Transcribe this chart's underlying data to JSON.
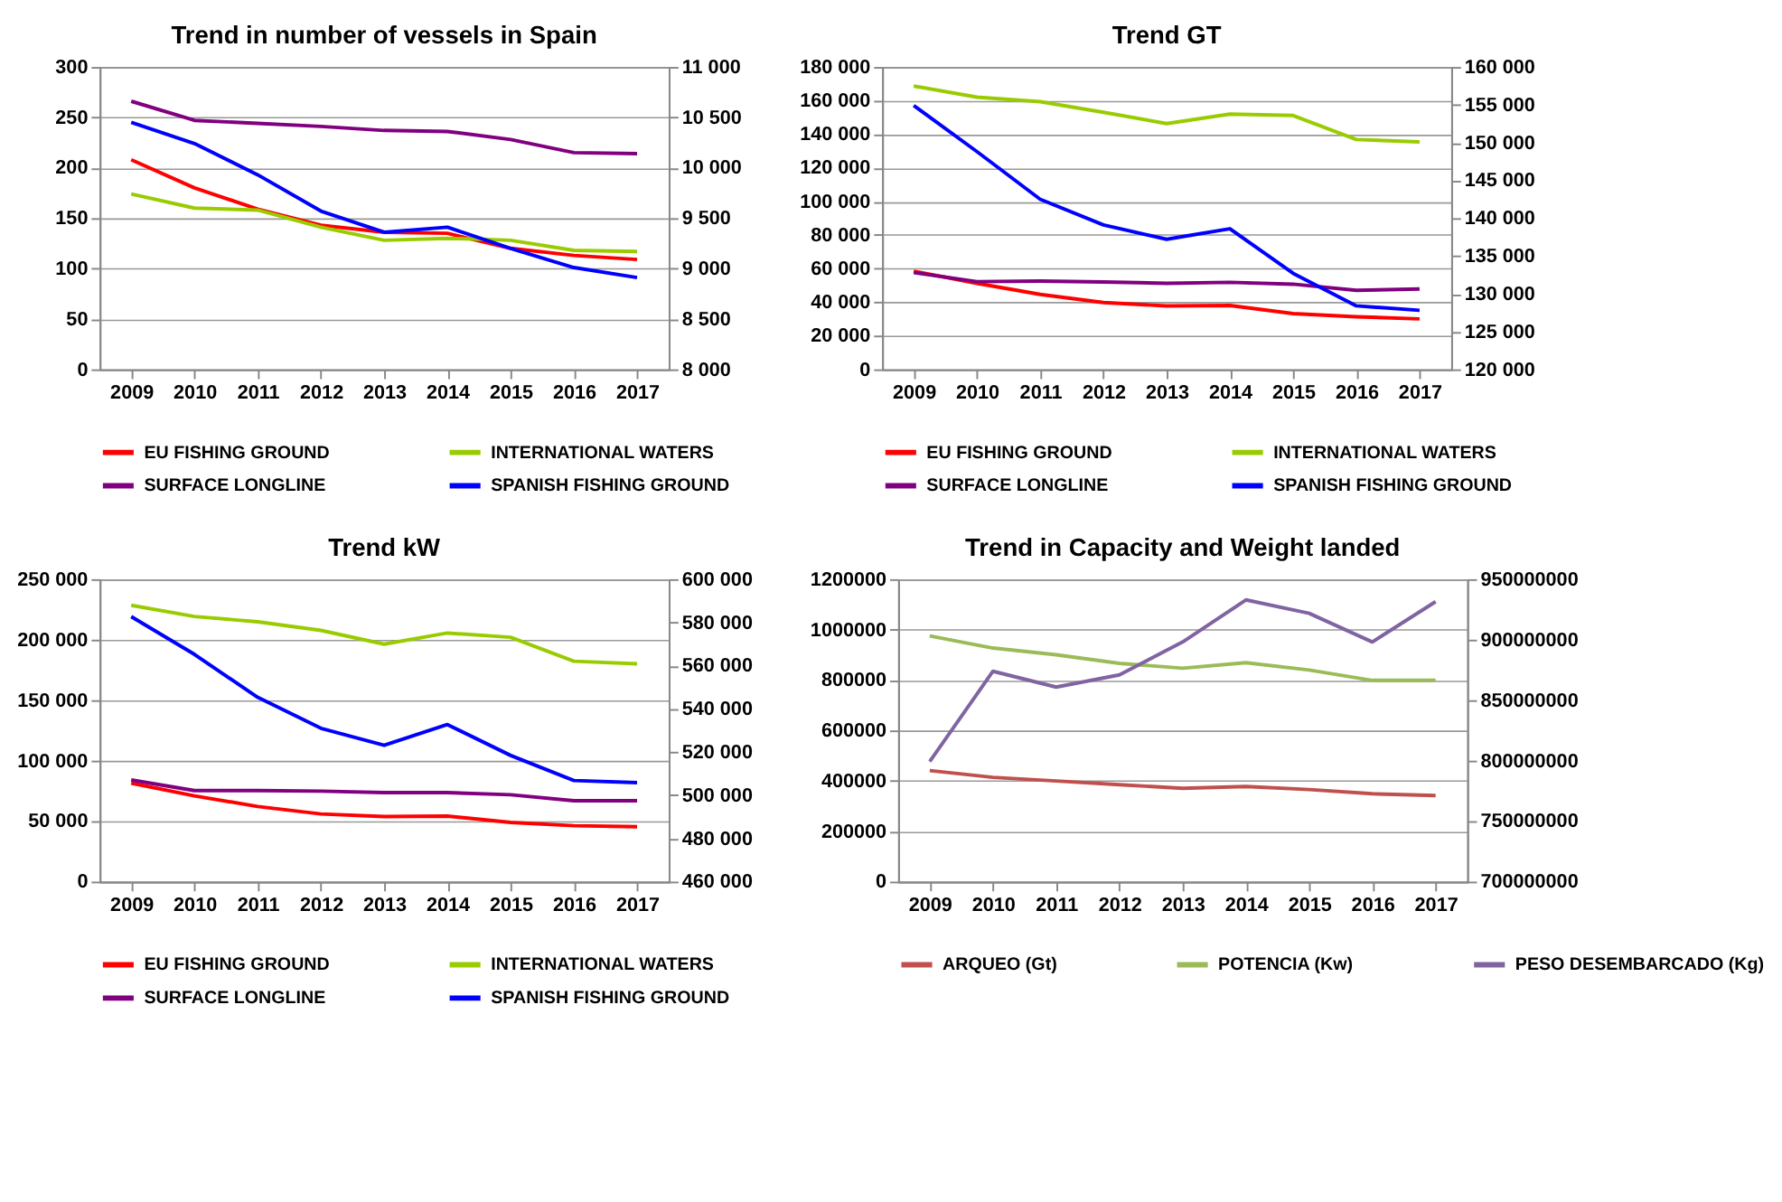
{
  "chart_data": [
    {
      "type": "line",
      "title": "Trend in number of vessels in Spain",
      "categories": [
        "2009",
        "2010",
        "2011",
        "2012",
        "2013",
        "2014",
        "2015",
        "2016",
        "2017"
      ],
      "ylim": [
        0,
        300
      ],
      "yticks": [
        0,
        50,
        100,
        150,
        200,
        250,
        300
      ],
      "y2lim": [
        8000,
        11000
      ],
      "y2ticks": [
        {
          "value": 8000,
          "label": "8 000"
        },
        {
          "value": 8500,
          "label": "8 500"
        },
        {
          "value": 9000,
          "label": "9 000"
        },
        {
          "value": 9500,
          "label": "9 500"
        },
        {
          "value": 10000,
          "label": "10 000"
        },
        {
          "value": 10500,
          "label": "10 500"
        },
        {
          "value": 11000,
          "label": "11 000"
        }
      ],
      "grid": "y",
      "legend": "bottom",
      "line_style": "solid",
      "marker": "none",
      "series": [
        {
          "name": "EU FISHING GROUND",
          "color": "#ff0000",
          "values": [
            208,
            180,
            159,
            143,
            136,
            135,
            120,
            113,
            109
          ]
        },
        {
          "name": "INTERNATIONAL WATERS",
          "color": "#99cc00",
          "values": [
            174,
            160,
            158,
            141,
            128,
            130,
            128,
            118,
            117
          ]
        },
        {
          "name": "SURFACE LONGLINE",
          "color": "#800080",
          "values": [
            266,
            247,
            244,
            241,
            237,
            236,
            228,
            215,
            214
          ]
        },
        {
          "name": "SPANISH FISHING GROUND",
          "color": "#0000ff",
          "axis": "y2",
          "values": [
            10450,
            10240,
            9930,
            9570,
            9360,
            9410,
            9200,
            9010,
            8910
          ]
        }
      ]
    },
    {
      "type": "line",
      "title": "Trend GT",
      "categories": [
        "2009",
        "2010",
        "2011",
        "2012",
        "2013",
        "2014",
        "2015",
        "2016",
        "2017"
      ],
      "ylim": [
        0,
        180000
      ],
      "yticks": [
        0,
        {
          "value": 20000,
          "label": "20 000"
        },
        {
          "value": 40000,
          "label": "40 000"
        },
        {
          "value": 60000,
          "label": "60 000"
        },
        {
          "value": 80000,
          "label": "80 000"
        },
        {
          "value": 100000,
          "label": "100 000"
        },
        {
          "value": 120000,
          "label": "120 000"
        },
        {
          "value": 140000,
          "label": "140 000"
        },
        {
          "value": 160000,
          "label": "160 000"
        },
        {
          "value": 180000,
          "label": "180 000"
        }
      ],
      "y2lim": [
        120000,
        160000
      ],
      "y2ticks": [
        {
          "value": 120000,
          "label": "120 000"
        },
        {
          "value": 125000,
          "label": "125 000"
        },
        {
          "value": 130000,
          "label": "130 000"
        },
        {
          "value": 135000,
          "label": "135 000"
        },
        {
          "value": 140000,
          "label": "140 000"
        },
        {
          "value": 145000,
          "label": "145 000"
        },
        {
          "value": 150000,
          "label": "150 000"
        },
        {
          "value": 155000,
          "label": "155 000"
        },
        {
          "value": 160000,
          "label": "160 000"
        }
      ],
      "grid": "y",
      "legend": "bottom",
      "line_style": "solid",
      "marker": "none",
      "series": [
        {
          "name": "EU FISHING GROUND",
          "color": "#ff0000",
          "values": [
            58400,
            51200,
            44600,
            39800,
            37700,
            38000,
            33200,
            31300,
            30000
          ]
        },
        {
          "name": "INTERNATIONAL WATERS",
          "color": "#99cc00",
          "values": [
            168600,
            162000,
            159300,
            153000,
            146300,
            151900,
            151100,
            136800,
            135400
          ]
        },
        {
          "name": "SURFACE LONGLINE",
          "color": "#800080",
          "values": [
            57600,
            52200,
            52500,
            52000,
            51200,
            51800,
            50700,
            47000,
            47800
          ]
        },
        {
          "name": "SPANISH FISHING GROUND",
          "color": "#0000ff",
          "axis": "y2",
          "values": [
            154900,
            148800,
            142500,
            139100,
            137200,
            138600,
            132700,
            128400,
            127800
          ]
        }
      ]
    },
    {
      "type": "line",
      "title": "Trend kW",
      "categories": [
        "2009",
        "2010",
        "2011",
        "2012",
        "2013",
        "2014",
        "2015",
        "2016",
        "2017"
      ],
      "ylim": [
        0,
        250000
      ],
      "yticks": [
        0,
        {
          "value": 50000,
          "label": "50 000"
        },
        {
          "value": 100000,
          "label": "100 000"
        },
        {
          "value": 150000,
          "label": "150 000"
        },
        {
          "value": 200000,
          "label": "200 000"
        },
        {
          "value": 250000,
          "label": "250 000"
        }
      ],
      "y2lim": [
        460000,
        600000
      ],
      "y2ticks": [
        {
          "value": 460000,
          "label": "460 000"
        },
        {
          "value": 480000,
          "label": "480 000"
        },
        {
          "value": 500000,
          "label": "500 000"
        },
        {
          "value": 520000,
          "label": "520 000"
        },
        {
          "value": 540000,
          "label": "540 000"
        },
        {
          "value": 560000,
          "label": "560 000"
        },
        {
          "value": 580000,
          "label": "580 000"
        },
        {
          "value": 600000,
          "label": "600 000"
        }
      ],
      "grid": "y",
      "legend": "bottom",
      "line_style": "solid",
      "marker": "none",
      "series": [
        {
          "name": "EU FISHING GROUND",
          "color": "#ff0000",
          "values": [
            81400,
            70900,
            62100,
            55900,
            53700,
            54100,
            48900,
            46200,
            45300
          ]
        },
        {
          "name": "INTERNATIONAL WATERS",
          "color": "#99cc00",
          "values": [
            228400,
            219200,
            214800,
            207700,
            196300,
            205500,
            202000,
            182200,
            180000
          ]
        },
        {
          "name": "SURFACE LONGLINE",
          "color": "#800080",
          "values": [
            84000,
            75200,
            75200,
            74800,
            73500,
            73500,
            71800,
            66900,
            66900
          ]
        },
        {
          "name": "SPANISH FISHING GROUND",
          "color": "#0000ff",
          "axis": "y2",
          "values": [
            582700,
            565200,
            545300,
            531000,
            523100,
            532700,
            518400,
            506800,
            505800
          ]
        }
      ]
    },
    {
      "type": "line",
      "title": "Trend in Capacity and  Weight landed",
      "categories": [
        "2009",
        "2010",
        "2011",
        "2012",
        "2013",
        "2014",
        "2015",
        "2016",
        "2017"
      ],
      "ylim": [
        0,
        1200000
      ],
      "yticks": [
        0,
        200000,
        400000,
        600000,
        800000,
        1000000,
        1200000
      ],
      "y2lim": [
        700000000,
        950000000
      ],
      "y2ticks": [
        700000000,
        750000000,
        800000000,
        850000000,
        900000000,
        950000000
      ],
      "grid": "y",
      "legend": "bottom",
      "line_style": "solid",
      "marker": "none",
      "series": [
        {
          "name": "ARQUEO (Gt)",
          "color": "#c0504d",
          "values": [
            440400,
            413700,
            399200,
            384700,
            370200,
            377400,
            365300,
            348400,
            341200
          ]
        },
        {
          "name": "POTENCIA (Kw)",
          "color": "#9bbb59",
          "values": [
            975000,
            926700,
            900000,
            866100,
            846800,
            868600,
            839600,
            798500,
            798500
          ]
        },
        {
          "name": "PESO DESEMBARCADO (Kg)",
          "color": "#8064a2",
          "axis": "y2",
          "values": [
            799300000,
            873900000,
            860800000,
            870900000,
            898100000,
            932900000,
            921800000,
            898100000,
            931400000
          ]
        }
      ]
    }
  ]
}
